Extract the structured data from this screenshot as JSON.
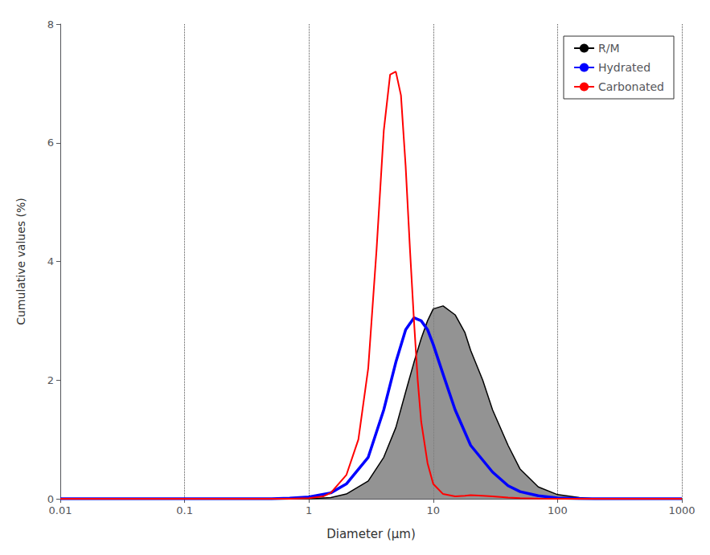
{
  "chart_data": {
    "type": "line",
    "xlabel": "Diameter (μm)",
    "ylabel": "Cumulative values (%)",
    "log": "x",
    "xlim": [
      0.01,
      1000
    ],
    "xticks": [
      0.01,
      0.1,
      1,
      10,
      100,
      1000
    ],
    "ylim": [
      0,
      8
    ],
    "yticks": [
      0,
      2,
      4,
      6,
      8
    ],
    "grid": "x",
    "legend": "upper right",
    "series": [
      {
        "name": "R/M",
        "type": "area",
        "color": "#000000",
        "x": [
          0.01,
          0.1,
          0.3,
          0.5,
          0.7,
          1.0,
          1.5,
          2.0,
          3.0,
          4.0,
          5.0,
          6.0,
          7.0,
          8.0,
          9.0,
          10.0,
          12.0,
          15.0,
          18.0,
          20.0,
          25.0,
          30.0,
          40.0,
          50.0,
          70.0,
          100.0,
          150.0,
          200.0,
          300.0,
          500.0,
          700.0,
          1000.0
        ],
        "values": [
          0.0,
          0.0,
          0.0,
          0.0,
          0.0,
          0.0,
          0.02,
          0.08,
          0.3,
          0.7,
          1.2,
          1.8,
          2.3,
          2.7,
          3.0,
          3.2,
          3.25,
          3.1,
          2.8,
          2.5,
          2.0,
          1.5,
          0.9,
          0.5,
          0.2,
          0.07,
          0.02,
          0.0,
          0.0,
          0.0,
          0.0,
          0.0
        ]
      },
      {
        "name": "Hydrated",
        "type": "line",
        "color": "#0000ff",
        "x": [
          0.01,
          0.1,
          0.3,
          0.5,
          0.7,
          1.0,
          1.5,
          2.0,
          3.0,
          4.0,
          5.0,
          6.0,
          7.0,
          8.0,
          9.0,
          10.0,
          12.0,
          15.0,
          20.0,
          30.0,
          40.0,
          50.0,
          70.0,
          100.0,
          150.0,
          200.0,
          300.0,
          500.0,
          700.0,
          1000.0
        ],
        "values": [
          0.0,
          0.0,
          0.0,
          0.0,
          0.01,
          0.03,
          0.1,
          0.25,
          0.7,
          1.5,
          2.3,
          2.85,
          3.05,
          3.0,
          2.85,
          2.6,
          2.1,
          1.5,
          0.9,
          0.45,
          0.22,
          0.12,
          0.05,
          0.015,
          0.003,
          0.0,
          0.0,
          0.0,
          0.0,
          0.0
        ]
      },
      {
        "name": "Carbonated",
        "type": "line",
        "color": "#ff0000",
        "x": [
          0.01,
          0.1,
          0.3,
          0.5,
          0.7,
          1.0,
          1.3,
          1.5,
          2.0,
          2.5,
          3.0,
          3.5,
          4.0,
          4.5,
          5.0,
          5.5,
          6.0,
          6.5,
          7.0,
          7.5,
          8.0,
          9.0,
          10.0,
          12.0,
          15.0,
          18.0,
          20.0,
          25.0,
          30.0,
          40.0,
          50.0,
          70.0,
          100.0,
          150.0,
          200.0,
          300.0,
          500.0,
          700.0,
          1000.0
        ],
        "values": [
          0.0,
          0.0,
          0.0,
          0.0,
          0.0,
          0.01,
          0.04,
          0.1,
          0.4,
          1.0,
          2.2,
          4.2,
          6.2,
          7.15,
          7.2,
          6.8,
          5.6,
          4.2,
          3.0,
          2.0,
          1.3,
          0.6,
          0.25,
          0.08,
          0.04,
          0.05,
          0.06,
          0.05,
          0.04,
          0.02,
          0.01,
          0.003,
          0.001,
          0.0,
          0.0,
          0.0,
          0.0,
          0.0,
          0.0
        ]
      }
    ]
  }
}
